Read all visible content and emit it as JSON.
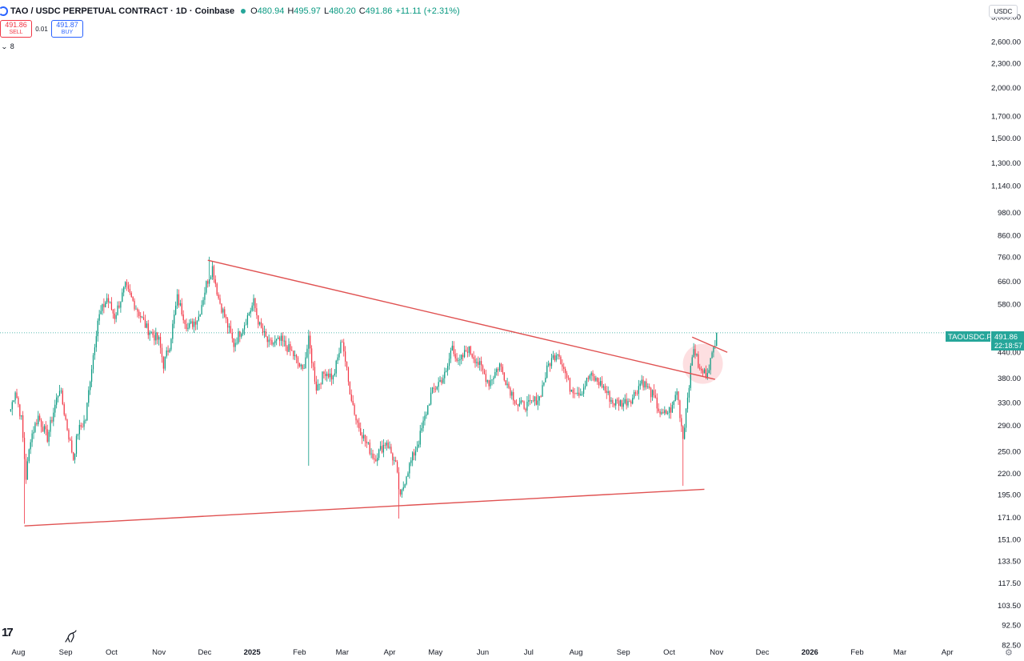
{
  "header": {
    "title": "TAO / USDC PERPETUAL CONTRACT · 1D · Coinbase",
    "open_label": "O",
    "open": "480.94",
    "high_label": "H",
    "high": "495.97",
    "low_label": "L",
    "low": "480.20",
    "close_label": "C",
    "close": "491.86",
    "change": "+11.11 (+2.31%)"
  },
  "trade": {
    "sell_price": "491.86",
    "sell_label": "SELL",
    "spread": "0.01",
    "buy_price": "491.87",
    "buy_label": "BUY"
  },
  "indicator_toggle": {
    "count": "8"
  },
  "currency": "USDC",
  "colors": {
    "up": "#089981",
    "down": "#f23645",
    "trendline": "#e05252",
    "price_label_bg": "#26a69a",
    "highlight": "rgba(242,54,69,0.16)"
  },
  "icons": [
    "symbol-icon",
    "live-dot-icon",
    "chevron-down-icon",
    "tradingview-logo-icon",
    "replay-icon",
    "settings-icon"
  ],
  "logo_text": "17",
  "chart_data": {
    "type": "candlestick",
    "symbol_tag": "TAOUSDC.P",
    "last_price": "491.86",
    "countdown": "22:18:57",
    "y_scale": "log",
    "ylim": [
      82.5,
      3300
    ],
    "yticks": [
      "3,000.00",
      "2,600.00",
      "2,300.00",
      "2,000.00",
      "1,700.00",
      "1,500.00",
      "1,300.00",
      "1,140.00",
      "980.00",
      "860.00",
      "760.00",
      "660.00",
      "580.00",
      "440.00",
      "380.00",
      "330.00",
      "290.00",
      "250.00",
      "220.00",
      "195.00",
      "171.00",
      "151.00",
      "133.50",
      "117.50",
      "103.50",
      "92.50",
      "82.50"
    ],
    "x_start": "2024-07-20",
    "x_end": "2026-04-25",
    "xticks": [
      {
        "date": "2024-08-01",
        "label": "Aug"
      },
      {
        "date": "2024-09-01",
        "label": "Sep"
      },
      {
        "date": "2024-10-01",
        "label": "Oct"
      },
      {
        "date": "2024-11-01",
        "label": "Nov"
      },
      {
        "date": "2024-12-01",
        "label": "Dec"
      },
      {
        "date": "2025-01-01",
        "label": "2025",
        "bold": true
      },
      {
        "date": "2025-02-01",
        "label": "Feb"
      },
      {
        "date": "2025-03-01",
        "label": "Mar"
      },
      {
        "date": "2025-04-01",
        "label": "Apr"
      },
      {
        "date": "2025-05-01",
        "label": "May"
      },
      {
        "date": "2025-06-01",
        "label": "Jun"
      },
      {
        "date": "2025-07-01",
        "label": "Jul"
      },
      {
        "date": "2025-08-01",
        "label": "Aug"
      },
      {
        "date": "2025-09-01",
        "label": "Sep"
      },
      {
        "date": "2025-10-01",
        "label": "Oct"
      },
      {
        "date": "2025-11-01",
        "label": "Nov"
      },
      {
        "date": "2025-12-01",
        "label": "Dec"
      },
      {
        "date": "2026-01-01",
        "label": "2026",
        "bold": true
      },
      {
        "date": "2026-02-01",
        "label": "Feb"
      },
      {
        "date": "2026-03-01",
        "label": "Mar"
      },
      {
        "date": "2026-04-01",
        "label": "Apr"
      }
    ],
    "price_path": [
      [
        "2024-07-27",
        318
      ],
      [
        "2024-07-30",
        355
      ],
      [
        "2024-08-03",
        300
      ],
      [
        "2024-08-06",
        215
      ],
      [
        "2024-08-09",
        270
      ],
      [
        "2024-08-14",
        305
      ],
      [
        "2024-08-20",
        270
      ],
      [
        "2024-08-25",
        325
      ],
      [
        "2024-08-28",
        360
      ],
      [
        "2024-09-02",
        285
      ],
      [
        "2024-09-06",
        240
      ],
      [
        "2024-09-09",
        280
      ],
      [
        "2024-09-14",
        300
      ],
      [
        "2024-09-17",
        380
      ],
      [
        "2024-09-22",
        530
      ],
      [
        "2024-09-28",
        600
      ],
      [
        "2024-10-03",
        540
      ],
      [
        "2024-10-10",
        640
      ],
      [
        "2024-10-17",
        570
      ],
      [
        "2024-10-24",
        505
      ],
      [
        "2024-11-01",
        470
      ],
      [
        "2024-11-04",
        410
      ],
      [
        "2024-11-08",
        460
      ],
      [
        "2024-11-13",
        600
      ],
      [
        "2024-11-20",
        505
      ],
      [
        "2024-11-27",
        540
      ],
      [
        "2024-12-02",
        650
      ],
      [
        "2024-12-06",
        715
      ],
      [
        "2024-12-10",
        600
      ],
      [
        "2024-12-14",
        540
      ],
      [
        "2024-12-20",
        460
      ],
      [
        "2024-12-27",
        520
      ],
      [
        "2025-01-02",
        585
      ],
      [
        "2025-01-06",
        510
      ],
      [
        "2025-01-12",
        460
      ],
      [
        "2025-01-20",
        470
      ],
      [
        "2025-01-27",
        440
      ],
      [
        "2025-02-03",
        395
      ],
      [
        "2025-02-07",
        470
      ],
      [
        "2025-02-12",
        360
      ],
      [
        "2025-02-18",
        395
      ],
      [
        "2025-02-23",
        380
      ],
      [
        "2025-03-01",
        475
      ],
      [
        "2025-03-05",
        370
      ],
      [
        "2025-03-10",
        300
      ],
      [
        "2025-03-16",
        265
      ],
      [
        "2025-03-22",
        240
      ],
      [
        "2025-03-30",
        265
      ],
      [
        "2025-04-05",
        230
      ],
      [
        "2025-04-08",
        190
      ],
      [
        "2025-04-12",
        220
      ],
      [
        "2025-04-20",
        265
      ],
      [
        "2025-04-28",
        345
      ],
      [
        "2025-05-03",
        370
      ],
      [
        "2025-05-08",
        390
      ],
      [
        "2025-05-12",
        460
      ],
      [
        "2025-05-16",
        410
      ],
      [
        "2025-05-22",
        450
      ],
      [
        "2025-05-28",
        420
      ],
      [
        "2025-06-05",
        370
      ],
      [
        "2025-06-12",
        410
      ],
      [
        "2025-06-18",
        360
      ],
      [
        "2025-06-24",
        325
      ],
      [
        "2025-07-01",
        325
      ],
      [
        "2025-07-08",
        340
      ],
      [
        "2025-07-14",
        410
      ],
      [
        "2025-07-20",
        445
      ],
      [
        "2025-07-28",
        360
      ],
      [
        "2025-08-04",
        350
      ],
      [
        "2025-08-10",
        385
      ],
      [
        "2025-08-18",
        365
      ],
      [
        "2025-08-25",
        330
      ],
      [
        "2025-09-01",
        330
      ],
      [
        "2025-09-07",
        340
      ],
      [
        "2025-09-13",
        375
      ],
      [
        "2025-09-20",
        345
      ],
      [
        "2025-09-26",
        305
      ],
      [
        "2025-10-03",
        320
      ],
      [
        "2025-10-06",
        355
      ],
      [
        "2025-10-10",
        270
      ],
      [
        "2025-10-13",
        345
      ],
      [
        "2025-10-17",
        455
      ],
      [
        "2025-10-21",
        395
      ],
      [
        "2025-10-25",
        390
      ],
      [
        "2025-10-29",
        430
      ],
      [
        "2025-11-01",
        491.86
      ]
    ],
    "spikes": [
      {
        "date": "2024-08-05",
        "low": 165
      },
      {
        "date": "2025-02-07",
        "low": 230
      },
      {
        "date": "2025-04-07",
        "low": 170
      },
      {
        "date": "2025-10-10",
        "low": 205
      },
      {
        "date": "2024-12-04",
        "high": 760
      }
    ],
    "trendlines": [
      {
        "from": [
          "2024-12-03",
          745
        ],
        "to": [
          "2025-10-31",
          377
        ]
      },
      {
        "from": [
          "2024-08-05",
          163
        ],
        "to": [
          "2025-10-24",
          201
        ]
      },
      {
        "from": [
          "2025-10-16",
          480
        ],
        "to": [
          "2025-11-08",
          440
        ]
      }
    ],
    "highlight": {
      "center": [
        "2025-10-23",
        412
      ]
    }
  }
}
